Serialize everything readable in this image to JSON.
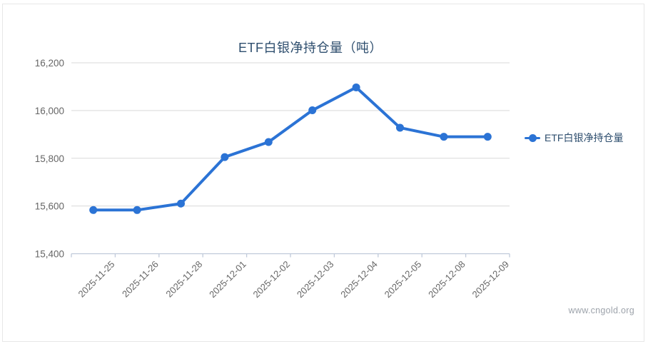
{
  "title": "ETF白银净持仓量（吨）",
  "legend": {
    "label": "ETF白银净持仓量",
    "color": "#2b73d5"
  },
  "watermark": "www.cngold.org",
  "colors": {
    "line": "#2b73d5",
    "marker": "#2b73d5",
    "grid": "#d9d9d9",
    "axis_line": "#c0cada",
    "tick_label": "#666666",
    "title_text": "#2e4e6e",
    "card_border": "#e7e7e7",
    "watermark_text": "#9da3ab"
  },
  "chart_data": {
    "type": "line",
    "title": "ETF白银净持仓量（吨）",
    "categories": [
      "2025-11-25",
      "2025-11-26",
      "2025-11-28",
      "2025-12-01",
      "2025-12-02",
      "2025-12-03",
      "2025-12-04",
      "2025-12-05",
      "2025-12-08",
      "2025-12-09"
    ],
    "series": [
      {
        "name": "ETF白银净持仓量",
        "color": "#2b73d5",
        "values": [
          15583,
          15583,
          15610,
          15805,
          15868,
          16001,
          16097,
          15928,
          15890,
          15890
        ]
      }
    ],
    "xlabel": "",
    "ylabel": "",
    "ylim": [
      15400,
      16200
    ],
    "yticks": [
      15400,
      15600,
      15800,
      16000,
      16200
    ],
    "grid": true,
    "marker_style": "filled-circle",
    "x_label_rotation_deg": -45,
    "legend_position": "right"
  }
}
